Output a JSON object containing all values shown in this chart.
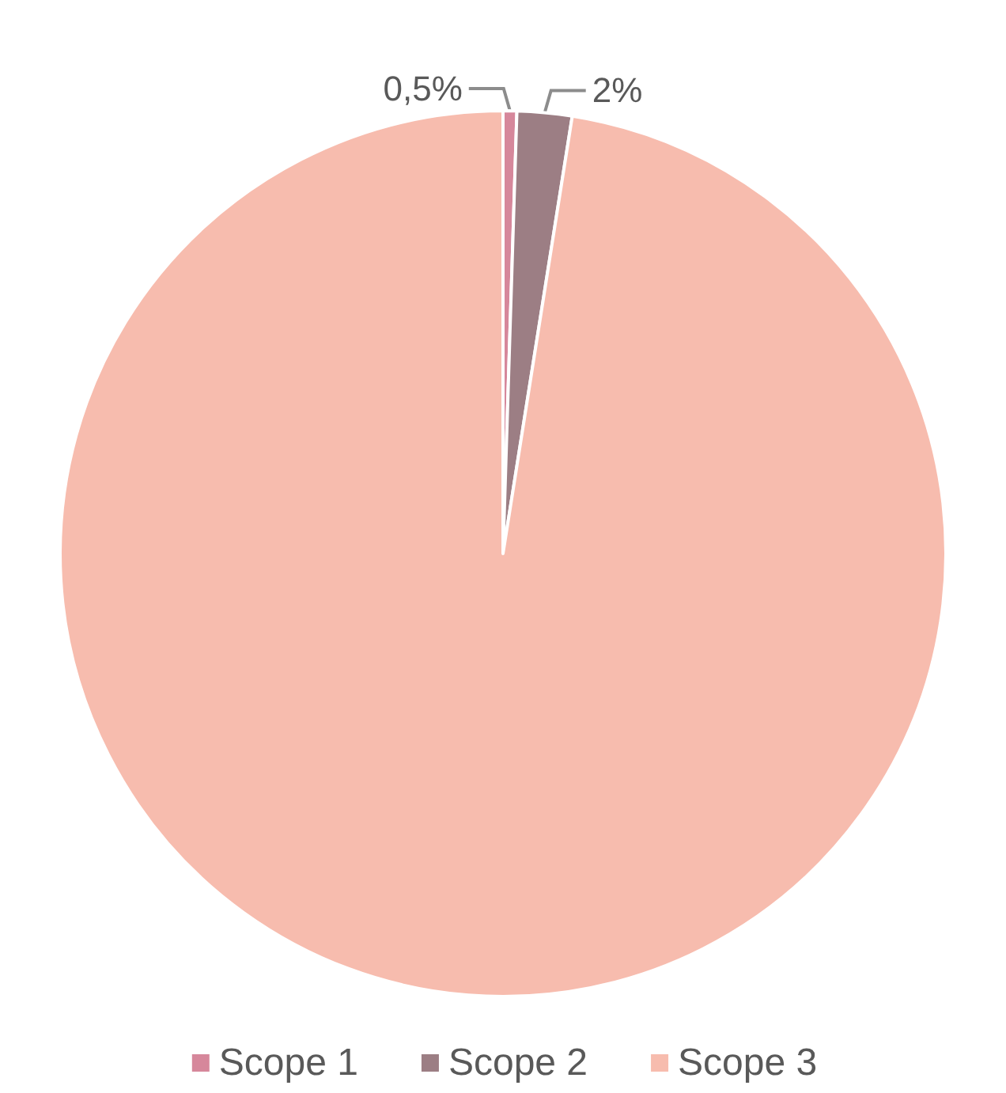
{
  "chart_data": {
    "type": "pie",
    "categories": [
      "Scope 1",
      "Scope 2",
      "Scope 3"
    ],
    "values": [
      0.5,
      2,
      97.5
    ],
    "colors": [
      "#d6879b",
      "#9c7e84",
      "#f7bcae"
    ],
    "value_labels": [
      "0,5%",
      "2%",
      null
    ],
    "legend": "bottom"
  }
}
